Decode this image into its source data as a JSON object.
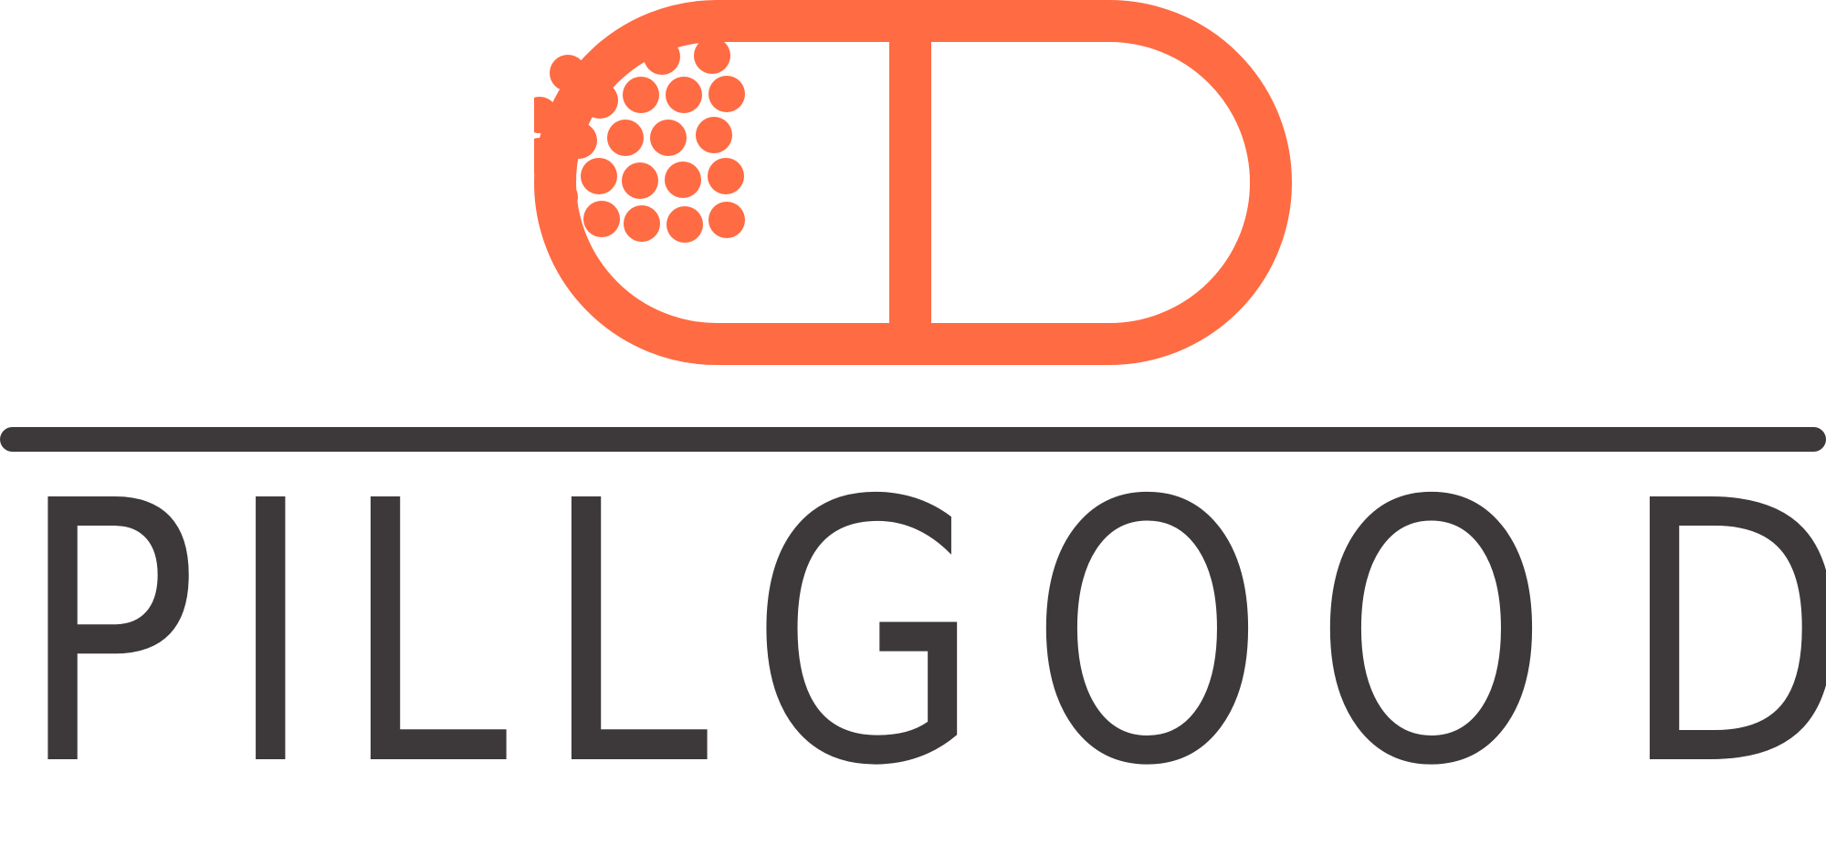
{
  "brand": {
    "name": "PILLGOOD",
    "letters": [
      "P",
      "I",
      "L",
      "L",
      "G",
      "O",
      "O",
      "D"
    ],
    "icon": "pill-capsule-icon"
  },
  "colors": {
    "accent": "#ff6b43",
    "text": "#3d393a",
    "background": "#ffffff"
  }
}
